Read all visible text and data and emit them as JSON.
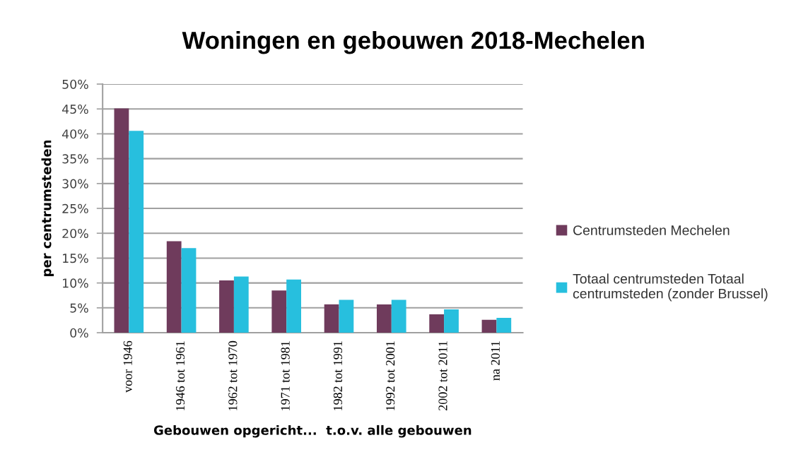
{
  "chart_data": {
    "type": "bar",
    "title": "Woningen en gebouwen 2018-Mechelen",
    "xlabel": "Gebouwen opgericht...  t.o.v. alle gebouwen",
    "ylabel": "per centrumsteden",
    "categories": [
      "voor 1946",
      "1946 tot 1961",
      "1962 tot 1970",
      "1971 tot 1981",
      "1982 tot 1991",
      "1992 tot 2001",
      "2002 tot 2011",
      "na 2011"
    ],
    "series": [
      {
        "name": "Centrumsteden Mechelen",
        "color": "#6f3b5c",
        "values": [
          45.1,
          18.4,
          10.5,
          8.5,
          5.7,
          5.7,
          3.7,
          2.6
        ]
      },
      {
        "name": "Totaal centrumsteden Totaal\ncentrumsteden (zonder Brussel)",
        "color": "#27bfde",
        "values": [
          40.6,
          17.0,
          11.3,
          10.7,
          6.6,
          6.6,
          4.7,
          3.0
        ]
      }
    ],
    "ylim": [
      0,
      50
    ],
    "yticks": [
      {
        "value": 0,
        "label": "0%"
      },
      {
        "value": 5,
        "label": "5%"
      },
      {
        "value": 10,
        "label": "10%"
      },
      {
        "value": 15,
        "label": "15%"
      },
      {
        "value": 20,
        "label": "20%"
      },
      {
        "value": 25,
        "label": "25%"
      },
      {
        "value": 30,
        "label": "30%"
      },
      {
        "value": 35,
        "label": "35%"
      },
      {
        "value": 40,
        "label": "40%"
      },
      {
        "value": 45,
        "label": "45%"
      },
      {
        "value": 50,
        "label": "50%"
      }
    ],
    "grid": "y",
    "legend": "right"
  }
}
